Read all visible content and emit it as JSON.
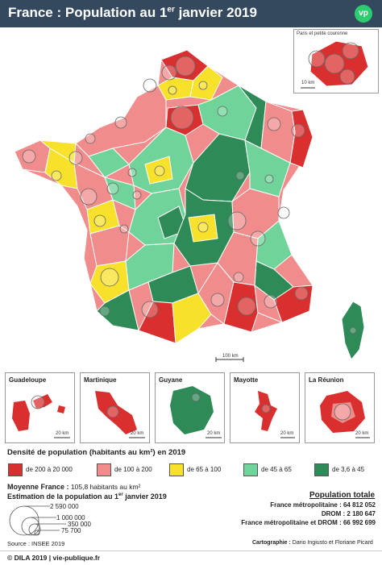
{
  "header": {
    "title_pre": "France : Population au 1",
    "title_sup": "er",
    "title_post": " janvier 2019",
    "logo": "vp"
  },
  "colors": {
    "header_bg": "#34495e",
    "dense_red": "#d9302f",
    "pink": "#f08c8c",
    "yellow": "#f7e12b",
    "light_green": "#6fd39a",
    "dark_green": "#2e8b57"
  },
  "map": {
    "inset_title": "Paris et petite couronne",
    "inset_scale": "10 km",
    "main_scale": "100 km"
  },
  "drom": [
    {
      "name": "Guadeloupe",
      "scale": "20 km"
    },
    {
      "name": "Martinique",
      "scale": "20 km"
    },
    {
      "name": "Guyane",
      "scale": "20 km"
    },
    {
      "name": "Mayotte",
      "scale": "20 km"
    },
    {
      "name": "La Réunion",
      "scale": "20 km"
    }
  ],
  "legend": {
    "density_title": "Densité de population (habitants au km²) en 2019",
    "classes": [
      {
        "label": "de 200 à 20 000",
        "color": "#d9302f"
      },
      {
        "label": "de 100 à 200",
        "color": "#f08c8c"
      },
      {
        "label": "de 65 à 100",
        "color": "#f7e12b"
      },
      {
        "label": "de 45 à 65",
        "color": "#6fd39a"
      },
      {
        "label": "de 3,6 à 45",
        "color": "#2e8b57"
      }
    ],
    "moyenne_label": "Moyenne France :",
    "moyenne_value": "105,8 habitants au km²",
    "estimation_pre": "Estimation de la population au 1",
    "estimation_sup": "er",
    "estimation_post": " janvier 2019",
    "circle_sizes": [
      "2 590 000",
      "1 000 000",
      "350 000",
      "75 700"
    ]
  },
  "population": {
    "title": "Population totale",
    "lines": [
      "France métropolitaine : 64 812 052",
      "DROM : 2 180 647",
      "France métropolitaine et DROM : 66 992 699"
    ]
  },
  "source": "Source : INSEE 2019",
  "cartographie_label": "Cartographie :",
  "cartographie_value": "Dario Ingiusto et Floriane Picard",
  "footer": "© DILA 2019 | vie-publique.fr"
}
